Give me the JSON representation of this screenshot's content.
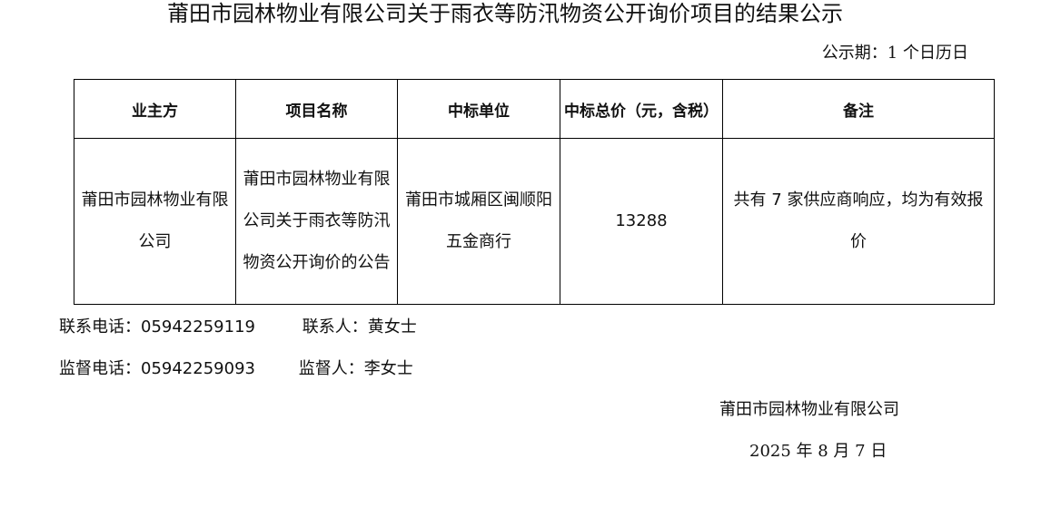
{
  "title": "莆田市园林物业有限公司关于雨衣等防汛物资公开询价项目的结果公示",
  "period": "公示期：1 个日历日",
  "table": {
    "headers": [
      "业主方",
      "项目名称",
      "中标单位",
      "中标总价（元，含税）",
      "备注"
    ],
    "rows": [
      [
        "莆田市园林物业有限公司",
        "莆田市园林物业有限公司关于雨衣等防汛物资公开询价的公告",
        "莆田市城厢区闽顺阳五金商行",
        "13288",
        "共有 7 家供应商响应，均为有效报价"
      ]
    ]
  },
  "contact": {
    "phone_label": "联系电话：",
    "phone": "05942259119",
    "person_label": "联系人：",
    "person": "黄女士"
  },
  "supervision": {
    "phone_label": "监督电话：",
    "phone": "05942259093",
    "person_label": "监督人：",
    "person": "李女士"
  },
  "signature": {
    "company": "莆田市园林物业有限公司",
    "date": "2025 年 8 月 7 日"
  }
}
